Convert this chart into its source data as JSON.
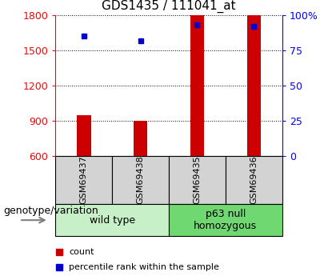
{
  "title": "GDS1435 / 111041_at",
  "samples": [
    "GSM69437",
    "GSM69438",
    "GSM69435",
    "GSM69436"
  ],
  "counts": [
    950,
    900,
    1800,
    1800
  ],
  "percentiles": [
    85,
    82,
    93,
    92
  ],
  "y_min": 600,
  "y_max": 1800,
  "y_ticks": [
    600,
    900,
    1200,
    1500,
    1800
  ],
  "y2_ticks": [
    0,
    25,
    50,
    75,
    100
  ],
  "groups": [
    {
      "label": "wild type",
      "samples": [
        0,
        1
      ],
      "color": "#c8f0c8"
    },
    {
      "label": "p63 null\nhomozygous",
      "samples": [
        2,
        3
      ],
      "color": "#70d870"
    }
  ],
  "bar_color": "#cc0000",
  "point_color": "#0000cc",
  "bar_width": 0.25,
  "genotype_label": "genotype/variation",
  "legend_count_label": "count",
  "legend_percentile_label": "percentile rank within the sample",
  "title_fontsize": 11,
  "tick_fontsize": 9,
  "sample_label_fontsize": 8,
  "group_label_fontsize": 9,
  "legend_fontsize": 8,
  "genotype_fontsize": 9,
  "bg_color": "#ffffff"
}
